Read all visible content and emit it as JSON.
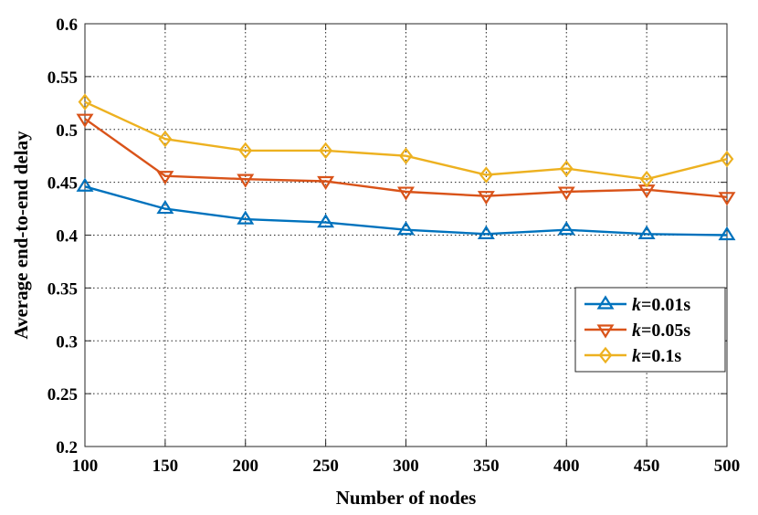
{
  "chart_data": {
    "type": "line",
    "title": "",
    "xlabel": "Number of nodes",
    "ylabel": "Average end-to-end delay",
    "x": [
      100,
      150,
      200,
      250,
      300,
      350,
      400,
      450,
      500
    ],
    "xlim": [
      100,
      500
    ],
    "ylim": [
      0.2,
      0.6
    ],
    "xticks": [
      "100",
      "150",
      "200",
      "250",
      "300",
      "350",
      "400",
      "450",
      "500"
    ],
    "yticks": [
      "0.2",
      "0.25",
      "0.3",
      "0.35",
      "0.4",
      "0.45",
      "0.5",
      "0.55",
      "0.6"
    ],
    "grid": true,
    "legend_position": "center-right",
    "series": [
      {
        "name_prefix": "k",
        "name_suffix": "=0.01s",
        "name": "k=0.01s",
        "marker": "triangle-up",
        "color": "#0072BD",
        "values": [
          0.446,
          0.425,
          0.415,
          0.412,
          0.405,
          0.401,
          0.405,
          0.401,
          0.4
        ]
      },
      {
        "name_prefix": "k",
        "name_suffix": "=0.05s",
        "name": "k=0.05s",
        "marker": "triangle-down",
        "color": "#D95319",
        "values": [
          0.51,
          0.456,
          0.453,
          0.451,
          0.441,
          0.437,
          0.441,
          0.443,
          0.436
        ]
      },
      {
        "name_prefix": "k",
        "name_suffix": "=0.1s",
        "name": "k=0.1s",
        "marker": "diamond",
        "color": "#EDB120",
        "values": [
          0.526,
          0.491,
          0.48,
          0.48,
          0.475,
          0.457,
          0.463,
          0.453,
          0.472
        ]
      }
    ]
  }
}
